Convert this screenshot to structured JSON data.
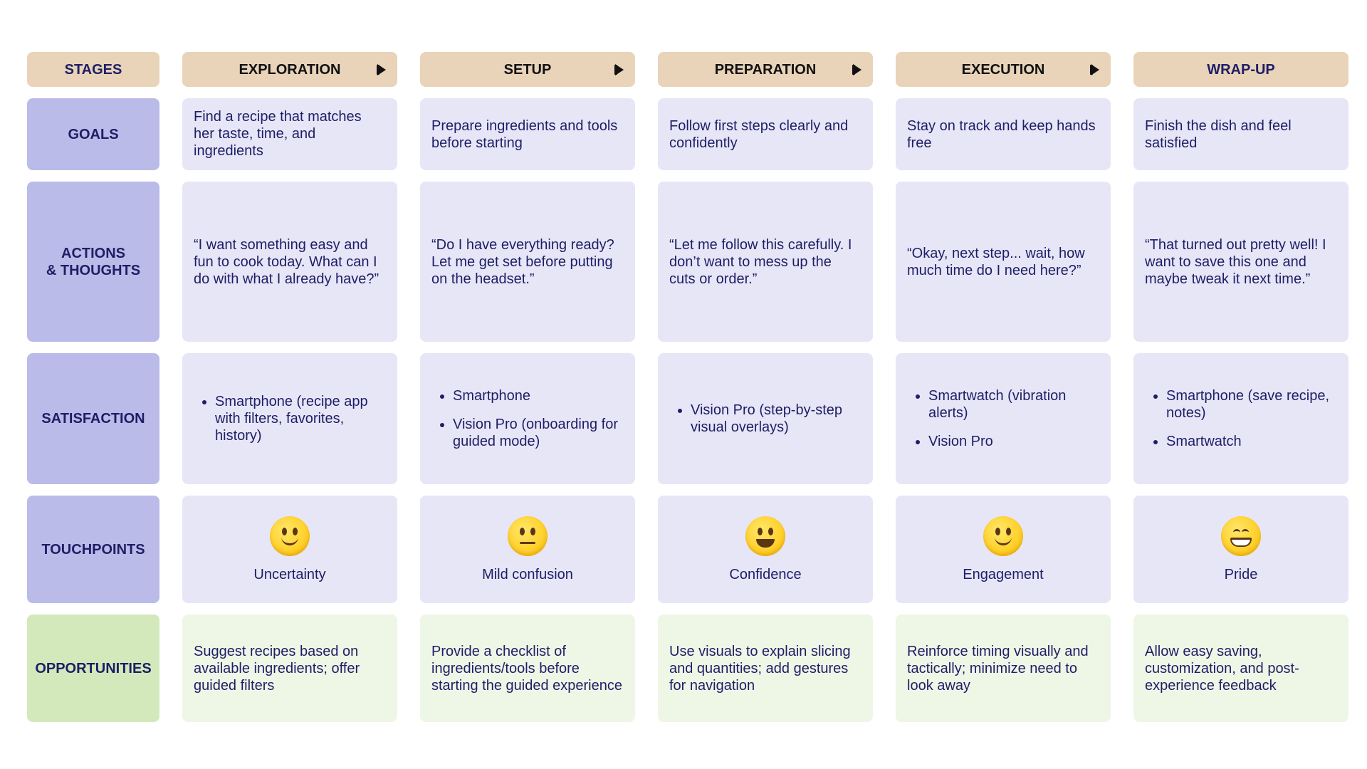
{
  "stages": {
    "label": "STAGES",
    "items": [
      "EXPLORATION",
      "SETUP",
      "PREPARATION",
      "EXECUTION",
      "WRAP-UP"
    ]
  },
  "rows": {
    "goals": {
      "label": "GOALS",
      "cells": [
        "Find a recipe that matches her taste, time, and ingredients",
        "Prepare ingredients and tools before starting",
        "Follow first steps clearly and confidently",
        "Stay on track and keep hands free",
        "Finish the dish and feel satisfied"
      ]
    },
    "actions": {
      "label": "ACTIONS\n& THOUGHTS",
      "cells": [
        "“I want something easy and fun to cook today. What can I do with what I already have?”",
        "“Do I have everything ready? Let me get set before putting on the headset.”",
        "“Let me follow this carefully. I don’t want to mess up the cuts or order.”",
        "“Okay, next step... wait, how much time do I need here?”",
        "“That turned out pretty well! I want to save this one and maybe tweak it next time.”"
      ]
    },
    "satisfaction": {
      "label": "SATISFACTION",
      "cells": [
        [
          "Smartphone (recipe app with filters, favorites, history)"
        ],
        [
          "Smartphone",
          "Vision Pro (onboarding for guided mode)"
        ],
        [
          "Vision Pro (step-by-step visual overlays)"
        ],
        [
          "Smartwatch (vibration alerts)",
          "Vision Pro"
        ],
        [
          "Smartphone (save recipe, notes)",
          "Smartwatch"
        ]
      ]
    },
    "touchpoints": {
      "label": "TOUCHPOINTS",
      "cells": [
        {
          "icon": "slightly-smiling-face-icon",
          "label": "Uncertainty"
        },
        {
          "icon": "neutral-face-icon",
          "label": "Mild confusion"
        },
        {
          "icon": "grinning-face-icon",
          "label": "Confidence"
        },
        {
          "icon": "slightly-smiling-face-icon",
          "label": "Engagement"
        },
        {
          "icon": "beaming-face-icon",
          "label": "Pride"
        }
      ]
    },
    "opportunities": {
      "label": "OPPORTUNITIES",
      "cells": [
        "Suggest recipes based on available ingredients; offer guided filters",
        "Provide a checklist of ingredients/tools before starting the guided experience",
        "Use visuals to explain slicing and quantities; add gestures for navigation",
        "Reinforce timing visually and tactically; minimize need to look away",
        "Allow easy saving, customization, and post-experience feedback"
      ]
    }
  },
  "colors": {
    "header": "#e9d3b9",
    "row_label": "#bbbbe9",
    "cell": "#e6e6f7",
    "opportunity_label": "#d4e9bb",
    "opportunity_cell": "#eef6e6",
    "text": "#1e1e66"
  }
}
